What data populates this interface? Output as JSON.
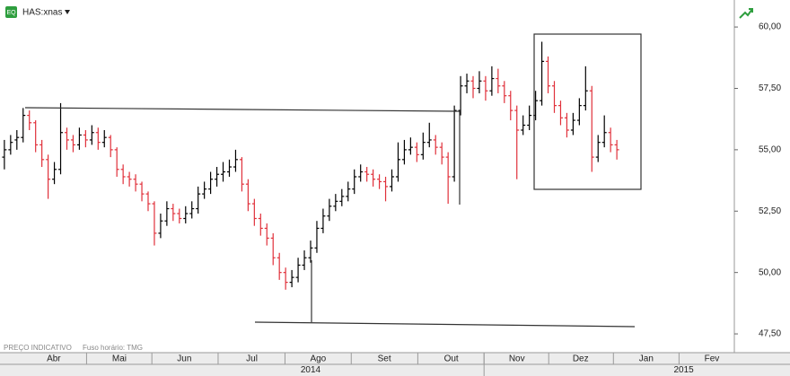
{
  "chart_data": {
    "type": "ohlc",
    "title": "HAS:xnas",
    "notes": [
      "PREÇO INDICATIVO",
      "Fuso horário: TMG"
    ],
    "up_color": "#000000",
    "down_color": "#e0303a",
    "ylim": [
      47.1,
      61.1
    ],
    "yticks": [
      {
        "value": 47.5,
        "label": "47,50"
      },
      {
        "value": 50,
        "label": "50,00"
      },
      {
        "value": 52.5,
        "label": "52,50"
      },
      {
        "value": 55,
        "label": "55,00"
      },
      {
        "value": 57.5,
        "label": "57,50"
      },
      {
        "value": 60,
        "label": "60,00"
      }
    ],
    "xlim": [
      -0.7,
      116.8
    ],
    "xticks": [
      {
        "value": 7.9,
        "label": "Abr"
      },
      {
        "value": 18.4,
        "label": "Mai"
      },
      {
        "value": 28.8,
        "label": "Jun"
      },
      {
        "value": 39.6,
        "label": "Jul"
      },
      {
        "value": 50.2,
        "label": "Ago"
      },
      {
        "value": 60.8,
        "label": "Set"
      },
      {
        "value": 71.5,
        "label": "Out"
      },
      {
        "value": 82,
        "label": "Nov"
      },
      {
        "value": 92.2,
        "label": "Dez"
      },
      {
        "value": 102.7,
        "label": "Jan"
      },
      {
        "value": 113.2,
        "label": "Fev"
      }
    ],
    "year_ticks": [
      {
        "value": 49,
        "label": "2014"
      },
      {
        "value": 108.7,
        "label": "2015"
      }
    ],
    "ohlc": [
      [
        54.7,
        55.4,
        54.2,
        55.0
      ],
      [
        55.0,
        55.6,
        54.8,
        55.3
      ],
      [
        55.4,
        55.8,
        55.0,
        55.5
      ],
      [
        55.5,
        56.7,
        55.3,
        56.4
      ],
      [
        56.4,
        56.6,
        55.8,
        56.1
      ],
      [
        56.1,
        56.2,
        54.9,
        55.2
      ],
      [
        55.2,
        55.4,
        54.3,
        54.6
      ],
      [
        54.6,
        54.8,
        53.0,
        53.8
      ],
      [
        53.8,
        54.5,
        53.6,
        54.2
      ],
      [
        54.2,
        56.9,
        54.0,
        55.7
      ],
      [
        55.7,
        55.9,
        55.0,
        55.4
      ],
      [
        55.4,
        55.6,
        54.9,
        55.2
      ],
      [
        55.2,
        55.9,
        55.0,
        55.6
      ],
      [
        55.6,
        55.8,
        55.1,
        55.4
      ],
      [
        55.4,
        56.0,
        55.2,
        55.7
      ],
      [
        55.7,
        55.9,
        55.0,
        55.3
      ],
      [
        55.3,
        55.8,
        55.1,
        55.5
      ],
      [
        55.5,
        55.6,
        54.7,
        55.0
      ],
      [
        55.0,
        55.1,
        53.9,
        54.2
      ],
      [
        54.2,
        54.4,
        53.6,
        53.9
      ],
      [
        53.9,
        54.1,
        53.5,
        53.8
      ],
      [
        53.8,
        54.0,
        53.3,
        53.6
      ],
      [
        53.6,
        53.7,
        52.9,
        53.2
      ],
      [
        53.2,
        53.3,
        52.5,
        52.8
      ],
      [
        52.8,
        52.9,
        51.1,
        51.6
      ],
      [
        51.6,
        52.4,
        51.4,
        52.1
      ],
      [
        52.1,
        52.9,
        51.9,
        52.6
      ],
      [
        52.6,
        52.8,
        52.1,
        52.4
      ],
      [
        52.4,
        52.6,
        52.0,
        52.2
      ],
      [
        52.2,
        52.7,
        52.0,
        52.4
      ],
      [
        52.4,
        52.9,
        52.2,
        52.6
      ],
      [
        52.6,
        53.5,
        52.4,
        53.2
      ],
      [
        53.2,
        53.7,
        53.0,
        53.4
      ],
      [
        53.4,
        54.1,
        53.2,
        53.8
      ],
      [
        53.8,
        54.3,
        53.5,
        54.0
      ],
      [
        54.0,
        54.5,
        53.7,
        54.1
      ],
      [
        54.1,
        54.6,
        53.9,
        54.3
      ],
      [
        54.3,
        55.0,
        54.1,
        54.6
      ],
      [
        54.6,
        54.7,
        53.3,
        53.6
      ],
      [
        53.6,
        53.8,
        52.5,
        52.8
      ],
      [
        52.8,
        53.0,
        51.9,
        52.2
      ],
      [
        52.2,
        52.4,
        51.5,
        51.8
      ],
      [
        51.8,
        52.0,
        51.1,
        51.4
      ],
      [
        51.4,
        51.6,
        50.3,
        50.6
      ],
      [
        50.6,
        50.8,
        49.7,
        50.0
      ],
      [
        50.0,
        50.2,
        49.3,
        49.6
      ],
      [
        49.6,
        50.1,
        49.4,
        49.8
      ],
      [
        49.8,
        50.6,
        49.6,
        50.3
      ],
      [
        50.3,
        50.9,
        50.1,
        50.6
      ],
      [
        50.6,
        51.3,
        50.4,
        51.0
      ],
      [
        51.0,
        52.1,
        50.8,
        51.8
      ],
      [
        51.8,
        52.6,
        51.6,
        52.3
      ],
      [
        52.3,
        53.0,
        52.1,
        52.7
      ],
      [
        52.7,
        53.2,
        52.5,
        52.9
      ],
      [
        52.9,
        53.4,
        52.7,
        53.1
      ],
      [
        53.1,
        53.7,
        52.9,
        53.4
      ],
      [
        53.4,
        54.2,
        53.2,
        53.9
      ],
      [
        53.9,
        54.4,
        53.7,
        54.1
      ],
      [
        54.1,
        54.3,
        53.7,
        54.0
      ],
      [
        54.0,
        54.2,
        53.5,
        53.8
      ],
      [
        53.8,
        54.0,
        53.4,
        53.7
      ],
      [
        53.7,
        53.9,
        52.9,
        53.5
      ],
      [
        53.5,
        54.2,
        53.3,
        53.9
      ],
      [
        53.9,
        55.3,
        53.7,
        54.6
      ],
      [
        54.6,
        55.4,
        54.4,
        55.0
      ],
      [
        55.0,
        55.5,
        54.8,
        55.1
      ],
      [
        55.1,
        55.3,
        54.5,
        54.8
      ],
      [
        54.8,
        55.7,
        54.6,
        55.3
      ],
      [
        55.3,
        56.1,
        55.1,
        55.4
      ],
      [
        55.4,
        55.6,
        54.8,
        55.1
      ],
      [
        55.1,
        55.3,
        54.4,
        54.7
      ],
      [
        54.7,
        54.9,
        52.8,
        53.9
      ],
      [
        53.9,
        56.8,
        53.7,
        56.6
      ],
      [
        56.6,
        58.0,
        56.4,
        57.6
      ],
      [
        57.6,
        58.1,
        57.3,
        57.8
      ],
      [
        57.8,
        58.0,
        57.1,
        57.5
      ],
      [
        57.5,
        58.2,
        57.3,
        57.8
      ],
      [
        57.8,
        58.0,
        57.0,
        57.4
      ],
      [
        57.4,
        58.4,
        57.2,
        57.9
      ],
      [
        57.9,
        58.3,
        57.3,
        57.6
      ],
      [
        57.6,
        57.8,
        56.9,
        57.2
      ],
      [
        57.2,
        57.4,
        56.2,
        56.6
      ],
      [
        56.6,
        56.8,
        53.8,
        55.8
      ],
      [
        55.8,
        56.4,
        55.6,
        56.0
      ],
      [
        56.0,
        56.8,
        55.8,
        56.4
      ],
      [
        56.4,
        57.4,
        56.2,
        57.0
      ],
      [
        57.0,
        59.4,
        56.8,
        58.6
      ],
      [
        58.6,
        58.8,
        57.3,
        57.6
      ],
      [
        57.6,
        57.8,
        56.5,
        56.8
      ],
      [
        56.8,
        57.0,
        56.0,
        56.3
      ],
      [
        56.3,
        56.5,
        55.5,
        55.8
      ],
      [
        55.8,
        56.5,
        55.6,
        56.2
      ],
      [
        56.2,
        57.1,
        56.0,
        56.8
      ],
      [
        56.8,
        58.4,
        56.6,
        57.4
      ],
      [
        57.4,
        57.6,
        54.1,
        54.7
      ],
      [
        54.7,
        55.6,
        54.5,
        55.3
      ],
      [
        55.3,
        56.4,
        55.1,
        55.7
      ],
      [
        55.7,
        55.9,
        54.9,
        55.2
      ],
      [
        55.2,
        55.4,
        54.6,
        55.0
      ]
    ]
  }
}
